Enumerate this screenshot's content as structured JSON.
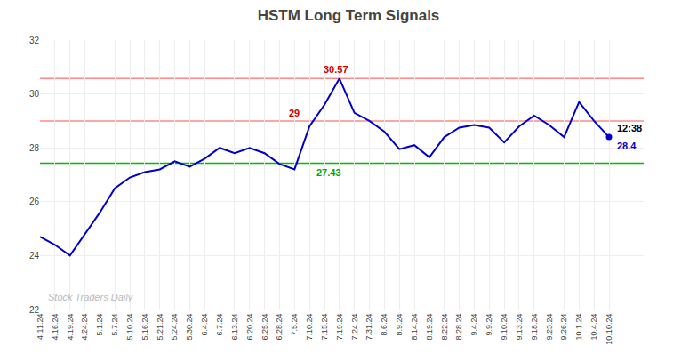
{
  "chart_data": {
    "type": "line",
    "title": "HSTM Long Term Signals",
    "categories": [
      "4.11.24",
      "4.16.24",
      "4.19.24",
      "4.24.24",
      "5.1.24",
      "5.7.24",
      "5.10.24",
      "5.16.24",
      "5.21.24",
      "5.24.24",
      "5.30.24",
      "6.4.24",
      "6.7.24",
      "6.13.24",
      "6.20.24",
      "6.25.24",
      "6.28.24",
      "7.5.24",
      "7.10.24",
      "7.15.24",
      "7.19.24",
      "7.24.24",
      "7.31.24",
      "8.6.24",
      "8.9.24",
      "8.14.24",
      "8.19.24",
      "8.22.24",
      "8.28.24",
      "9.4.24",
      "9.9.24",
      "9.10.24",
      "9.13.24",
      "9.18.24",
      "9.23.24",
      "9.26.24",
      "10.1.24",
      "10.4.24",
      "10.10.24"
    ],
    "values": [
      24.7,
      24.4,
      24.0,
      24.8,
      25.6,
      26.5,
      26.9,
      27.1,
      27.2,
      27.5,
      27.3,
      27.6,
      28.0,
      27.8,
      28.0,
      27.8,
      27.4,
      27.2,
      28.8,
      29.6,
      30.57,
      29.3,
      29.0,
      28.6,
      27.95,
      28.1,
      27.65,
      28.4,
      28.75,
      28.85,
      28.75,
      28.2,
      28.8,
      29.2,
      28.85,
      28.4,
      29.7,
      29.0,
      28.4
    ],
    "color": "#0000cc",
    "ylim": [
      22,
      32
    ],
    "yticks": [
      22,
      24,
      26,
      28,
      30,
      32
    ],
    "grid": true,
    "reference_lines": [
      {
        "value": 29,
        "color": "#ff8888"
      },
      {
        "value": 30.57,
        "color": "#ff8888"
      },
      {
        "value": 27.43,
        "color": "#00bb00"
      }
    ],
    "annotations": [
      {
        "text": "30.57",
        "color": "#cc0000",
        "category": "7.19.24",
        "y": 30.57
      },
      {
        "text": "27.43",
        "color": "#00aa00",
        "category": "7.10.24",
        "y": 27.43
      },
      {
        "text": "29",
        "color": "#cc0000",
        "category": "7.5.24",
        "y": 29
      },
      {
        "text": "12:38",
        "color": "#000000",
        "category": "10.10.24",
        "y": 28.4
      },
      {
        "text": "28.4",
        "color": "#0000cc",
        "category": "10.10.24",
        "y": 28.4,
        "marker": "circle"
      }
    ],
    "watermark": {
      "text": "Stock Traders Daily",
      "color": "#bbbbbb"
    }
  }
}
